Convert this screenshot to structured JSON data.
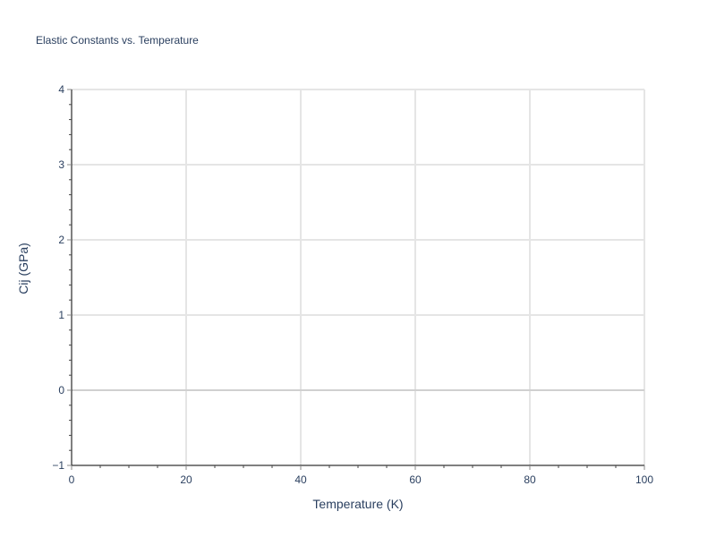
{
  "chart_data": {
    "type": "line",
    "title": "Elastic Constants vs. Temperature",
    "xlabel": "Temperature (K)",
    "ylabel": "Cij (GPa)",
    "xlim": [
      0,
      100
    ],
    "ylim": [
      -1,
      4
    ],
    "x_ticks": [
      0,
      20,
      40,
      60,
      80,
      100
    ],
    "y_ticks": [
      -1,
      0,
      1,
      2,
      3,
      4
    ],
    "x_tick_labels": [
      "0",
      "20",
      "40",
      "60",
      "80",
      "100"
    ],
    "y_tick_labels": [
      "−1",
      "0",
      "1",
      "2",
      "3",
      "4"
    ],
    "grid": true,
    "series": [],
    "colors": {
      "grid": "#e5e5e5",
      "zeroline": "#d0d0d0",
      "axis": "#000000",
      "text": "#2a3f5f"
    }
  }
}
